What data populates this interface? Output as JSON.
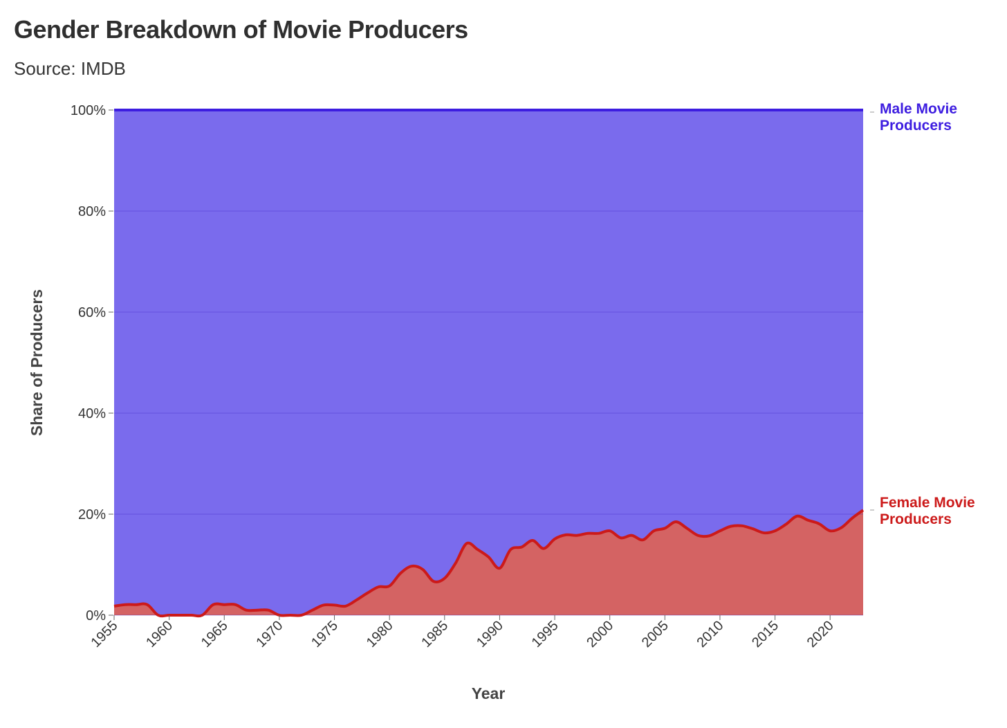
{
  "chart_data": {
    "type": "area",
    "stacked": true,
    "title": "Gender Breakdown of Movie Producers",
    "subtitle": "Source: IMDB",
    "xlabel": "Year",
    "ylabel": "Share of Producers",
    "xlim": [
      1955,
      2023
    ],
    "ylim": [
      0,
      100
    ],
    "x_ticks": [
      1955,
      1960,
      1965,
      1970,
      1975,
      1980,
      1985,
      1990,
      1995,
      2000,
      2005,
      2010,
      2015,
      2020
    ],
    "y_ticks": [
      0,
      20,
      40,
      60,
      80,
      100
    ],
    "y_tick_labels": [
      "0%",
      "20%",
      "40%",
      "60%",
      "80%",
      "100%"
    ],
    "grid": "horizontal",
    "legend": "direct labels at right end of series",
    "x": [
      1955,
      1956,
      1957,
      1958,
      1959,
      1960,
      1961,
      1962,
      1963,
      1964,
      1965,
      1966,
      1967,
      1968,
      1969,
      1970,
      1971,
      1972,
      1973,
      1974,
      1975,
      1976,
      1977,
      1978,
      1979,
      1980,
      1981,
      1982,
      1983,
      1984,
      1985,
      1986,
      1987,
      1988,
      1989,
      1990,
      1991,
      1992,
      1993,
      1994,
      1995,
      1996,
      1997,
      1998,
      1999,
      2000,
      2001,
      2002,
      2003,
      2004,
      2005,
      2006,
      2007,
      2008,
      2009,
      2010,
      2011,
      2012,
      2013,
      2014,
      2015,
      2016,
      2017,
      2018,
      2019,
      2020,
      2021,
      2022,
      2023
    ],
    "series": [
      {
        "name": "Female Movie Producers",
        "color": "#cc1a1a",
        "fill": "#d46363",
        "values": [
          1.8,
          2.1,
          2.1,
          2.1,
          0,
          0,
          0,
          0,
          0,
          2.1,
          2.1,
          2.1,
          1.0,
          1.0,
          1.0,
          0,
          0,
          0,
          1.0,
          2.0,
          2.0,
          1.8,
          3.0,
          4.4,
          5.6,
          5.8,
          8.3,
          9.7,
          9.1,
          6.7,
          7.3,
          10.3,
          14.2,
          13.0,
          11.5,
          9.3,
          13.0,
          13.5,
          14.8,
          13.2,
          15.1,
          15.9,
          15.8,
          16.2,
          16.2,
          16.7,
          15.3,
          15.8,
          14.9,
          16.7,
          17.2,
          18.5,
          17.2,
          15.8,
          15.7,
          16.7,
          17.6,
          17.7,
          17.1,
          16.3,
          16.7,
          18.0,
          19.6,
          18.8,
          18.1,
          16.7,
          17.3,
          19.2,
          20.8
        ]
      },
      {
        "name": "Male Movie Producers",
        "color": "#3d1de0",
        "fill": "#7a6bed",
        "values": [
          98.2,
          97.9,
          97.9,
          97.9,
          100,
          100,
          100,
          100,
          100,
          97.9,
          97.9,
          97.9,
          99.0,
          99.0,
          99.0,
          100,
          100,
          100,
          99.0,
          98.0,
          98.0,
          98.2,
          97.0,
          95.6,
          94.4,
          94.2,
          91.7,
          90.3,
          90.9,
          93.3,
          92.7,
          89.7,
          85.8,
          87.0,
          88.5,
          90.7,
          87.0,
          86.5,
          85.2,
          86.8,
          84.9,
          84.1,
          84.2,
          83.8,
          83.8,
          83.3,
          84.7,
          84.2,
          85.1,
          83.3,
          82.8,
          81.5,
          82.8,
          84.2,
          84.3,
          83.3,
          82.4,
          82.3,
          82.9,
          83.7,
          83.3,
          82.0,
          80.4,
          81.2,
          81.9,
          83.3,
          82.7,
          80.8,
          79.2
        ]
      }
    ],
    "series_labels": {
      "male": [
        "Male Movie",
        "Producers"
      ],
      "female": [
        "Female Movie",
        "Producers"
      ]
    }
  }
}
